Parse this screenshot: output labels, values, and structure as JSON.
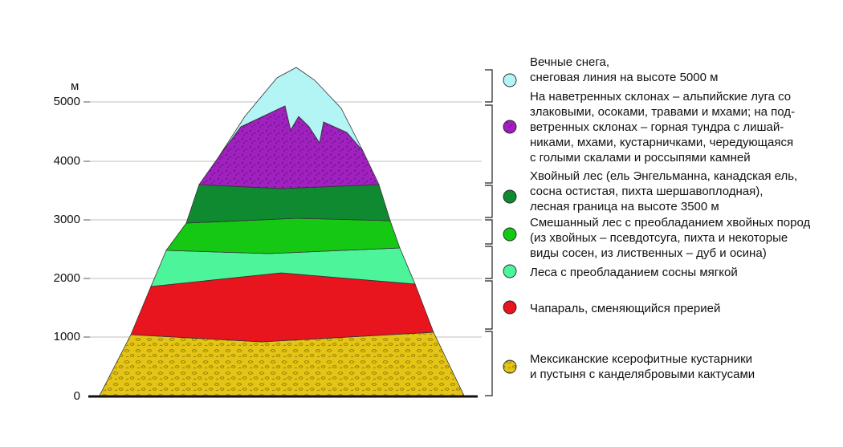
{
  "axis": {
    "unit": "м",
    "ticks": [
      "5000",
      "4000",
      "3000",
      "2000",
      "1000",
      "0"
    ]
  },
  "zones": [
    {
      "id": "snow",
      "color": "#b3f5f5",
      "range": [
        4200,
        5560
      ],
      "text": "Вечные снега,\nснеговая линия на высоте 5000 м"
    },
    {
      "id": "alpine",
      "color": "#a020c0",
      "range": [
        3500,
        4950
      ],
      "text": "На наветренных склонах – альпийские луга со\nзлаковыми, осоками, травами и мхами; на под-\nветренных склонах – горная тундра с лишай-\nниками, мхами, кустарничками, чередующаяся\nс голыми скалами и россыпями камней"
    },
    {
      "id": "conifer",
      "color": "#0f8a30",
      "range": [
        2950,
        3600
      ],
      "text": "Хвойный лес (ель Энгельманна, канадская ель,\nсосна остистая, пихта шершавоплодная),\nлесная граница на высоте 3500 м"
    },
    {
      "id": "mixed",
      "color": "#14c814",
      "range": [
        2420,
        3020
      ],
      "text": "Смешанный лес с преобладанием хвойных пород\n(из хвойных – псевдотсуга, пихта и некоторые\nвиды сосен, из лиственных – дуб и осина)"
    },
    {
      "id": "pine",
      "color": "#4cf59a",
      "range": [
        1880,
        2500
      ],
      "text": "Леса с преобладанием сосны мягкой"
    },
    {
      "id": "chaparral",
      "color": "#e8141e",
      "range": [
        940,
        2100
      ],
      "text": "Чапараль, сменяющийся прерией"
    },
    {
      "id": "desert",
      "color": "#e4c414",
      "range": [
        0,
        1080
      ],
      "text": "Мексиканские ксерофитные кустарники\nи пустыня с канделябровыми кактусами"
    }
  ]
}
